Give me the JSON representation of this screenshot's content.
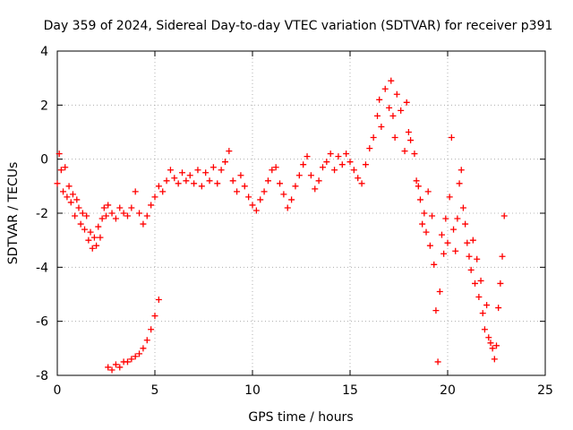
{
  "chart_data": {
    "type": "scatter",
    "title": "Day 359 of 2024, Sidereal Day-to-day VTEC variation (SDTVAR) for receiver p391",
    "xlabel": "GPS time / hours",
    "ylabel": "SDTVAR / TECUs",
    "xlim": [
      0,
      25
    ],
    "ylim": [
      -8,
      4
    ],
    "xticks": [
      "0",
      "5",
      "10",
      "15",
      "20",
      "25"
    ],
    "yticks": [
      "4",
      "2",
      "0",
      "-2",
      "-4",
      "-6",
      "-8"
    ],
    "grid": true,
    "marker": "plus",
    "series": [
      {
        "name": "SDTVAR",
        "color": "#ff0000",
        "points": [
          [
            0.0,
            -0.9
          ],
          [
            0.1,
            0.2
          ],
          [
            0.2,
            -0.4
          ],
          [
            0.3,
            -1.2
          ],
          [
            0.4,
            -0.3
          ],
          [
            0.5,
            -1.4
          ],
          [
            0.6,
            -1.0
          ],
          [
            0.7,
            -1.6
          ],
          [
            0.8,
            -1.3
          ],
          [
            0.9,
            -2.1
          ],
          [
            1.0,
            -1.5
          ],
          [
            1.1,
            -1.8
          ],
          [
            1.2,
            -2.4
          ],
          [
            1.3,
            -2.0
          ],
          [
            1.4,
            -2.6
          ],
          [
            1.5,
            -2.1
          ],
          [
            1.6,
            -3.0
          ],
          [
            1.7,
            -2.7
          ],
          [
            1.8,
            -3.3
          ],
          [
            1.9,
            -2.9
          ],
          [
            2.0,
            -3.2
          ],
          [
            2.1,
            -2.5
          ],
          [
            2.2,
            -2.9
          ],
          [
            2.3,
            -2.2
          ],
          [
            2.4,
            -1.8
          ],
          [
            2.5,
            -2.1
          ],
          [
            2.6,
            -1.7
          ],
          [
            2.8,
            -2.0
          ],
          [
            3.0,
            -2.2
          ],
          [
            3.2,
            -1.8
          ],
          [
            3.4,
            -2.0
          ],
          [
            3.6,
            -2.1
          ],
          [
            3.8,
            -1.8
          ],
          [
            4.0,
            -1.2
          ],
          [
            4.2,
            -2.0
          ],
          [
            4.4,
            -2.4
          ],
          [
            4.6,
            -2.1
          ],
          [
            4.8,
            -1.7
          ],
          [
            5.0,
            -1.4
          ],
          [
            5.2,
            -1.0
          ],
          [
            5.4,
            -1.2
          ],
          [
            5.6,
            -0.8
          ],
          [
            5.8,
            -0.4
          ],
          [
            6.0,
            -0.7
          ],
          [
            6.2,
            -0.9
          ],
          [
            6.4,
            -0.5
          ],
          [
            6.6,
            -0.8
          ],
          [
            6.8,
            -0.6
          ],
          [
            7.0,
            -0.9
          ],
          [
            7.2,
            -0.4
          ],
          [
            7.4,
            -1.0
          ],
          [
            7.6,
            -0.5
          ],
          [
            7.8,
            -0.8
          ],
          [
            8.0,
            -0.3
          ],
          [
            8.2,
            -0.9
          ],
          [
            8.4,
            -0.4
          ],
          [
            8.6,
            -0.1
          ],
          [
            8.8,
            0.3
          ],
          [
            9.0,
            -0.8
          ],
          [
            9.2,
            -1.2
          ],
          [
            9.4,
            -0.6
          ],
          [
            9.6,
            -1.0
          ],
          [
            9.8,
            -1.4
          ],
          [
            10.0,
            -1.7
          ],
          [
            10.2,
            -1.9
          ],
          [
            10.4,
            -1.5
          ],
          [
            10.6,
            -1.2
          ],
          [
            10.8,
            -0.8
          ],
          [
            11.0,
            -0.4
          ],
          [
            11.2,
            -0.3
          ],
          [
            11.4,
            -0.9
          ],
          [
            11.6,
            -1.3
          ],
          [
            11.8,
            -1.8
          ],
          [
            12.0,
            -1.5
          ],
          [
            12.2,
            -1.0
          ],
          [
            12.4,
            -0.6
          ],
          [
            12.6,
            -0.2
          ],
          [
            12.8,
            0.1
          ],
          [
            13.0,
            -0.6
          ],
          [
            13.2,
            -1.1
          ],
          [
            13.4,
            -0.8
          ],
          [
            13.6,
            -0.3
          ],
          [
            13.8,
            -0.1
          ],
          [
            14.0,
            0.2
          ],
          [
            14.2,
            -0.4
          ],
          [
            14.4,
            0.1
          ],
          [
            14.6,
            -0.2
          ],
          [
            14.8,
            0.2
          ],
          [
            15.0,
            -0.1
          ],
          [
            15.2,
            -0.4
          ],
          [
            15.4,
            -0.7
          ],
          [
            15.6,
            -0.9
          ],
          [
            15.8,
            -0.2
          ],
          [
            16.0,
            0.4
          ],
          [
            16.2,
            0.8
          ],
          [
            16.4,
            1.6
          ],
          [
            16.5,
            2.2
          ],
          [
            16.6,
            1.2
          ],
          [
            16.8,
            2.6
          ],
          [
            17.0,
            1.9
          ],
          [
            17.1,
            2.9
          ],
          [
            17.2,
            1.6
          ],
          [
            17.3,
            0.8
          ],
          [
            17.4,
            2.4
          ],
          [
            17.6,
            1.8
          ],
          [
            17.8,
            0.3
          ],
          [
            17.9,
            2.1
          ],
          [
            18.0,
            1.0
          ],
          [
            18.1,
            0.7
          ],
          [
            18.3,
            0.2
          ],
          [
            18.4,
            -0.8
          ],
          [
            18.5,
            -1.0
          ],
          [
            18.6,
            -1.5
          ],
          [
            18.7,
            -2.4
          ],
          [
            18.8,
            -2.0
          ],
          [
            18.9,
            -2.7
          ],
          [
            19.0,
            -1.2
          ],
          [
            19.1,
            -3.2
          ],
          [
            19.2,
            -2.1
          ],
          [
            19.3,
            -3.9
          ],
          [
            19.4,
            -5.6
          ],
          [
            19.5,
            -7.5
          ],
          [
            19.6,
            -4.9
          ],
          [
            19.7,
            -2.8
          ],
          [
            19.8,
            -3.5
          ],
          [
            19.9,
            -2.2
          ],
          [
            20.0,
            -3.1
          ],
          [
            20.1,
            -1.4
          ],
          [
            20.2,
            0.8
          ],
          [
            20.3,
            -2.6
          ],
          [
            20.4,
            -3.4
          ],
          [
            20.5,
            -2.2
          ],
          [
            20.6,
            -0.9
          ],
          [
            20.7,
            -0.4
          ],
          [
            20.8,
            -1.8
          ],
          [
            20.9,
            -2.4
          ],
          [
            21.0,
            -3.1
          ],
          [
            21.1,
            -3.6
          ],
          [
            21.2,
            -4.1
          ],
          [
            21.3,
            -3.0
          ],
          [
            21.4,
            -4.6
          ],
          [
            21.5,
            -3.7
          ],
          [
            21.6,
            -5.1
          ],
          [
            21.7,
            -4.5
          ],
          [
            21.8,
            -5.7
          ],
          [
            21.9,
            -6.3
          ],
          [
            22.0,
            -5.4
          ],
          [
            22.1,
            -6.6
          ],
          [
            22.2,
            -6.8
          ],
          [
            22.3,
            -7.0
          ],
          [
            22.4,
            -7.4
          ],
          [
            22.5,
            -6.9
          ],
          [
            22.6,
            -5.5
          ],
          [
            22.7,
            -4.6
          ],
          [
            22.8,
            -3.6
          ],
          [
            22.9,
            -2.1
          ],
          [
            2.6,
            -7.7
          ],
          [
            2.8,
            -7.8
          ],
          [
            3.0,
            -7.6
          ],
          [
            3.2,
            -7.7
          ],
          [
            3.4,
            -7.5
          ],
          [
            3.6,
            -7.5
          ],
          [
            3.8,
            -7.4
          ],
          [
            4.0,
            -7.3
          ],
          [
            4.2,
            -7.2
          ],
          [
            4.4,
            -7.0
          ],
          [
            4.6,
            -6.7
          ],
          [
            4.8,
            -6.3
          ],
          [
            5.0,
            -5.8
          ],
          [
            5.2,
            -5.2
          ]
        ]
      }
    ]
  }
}
